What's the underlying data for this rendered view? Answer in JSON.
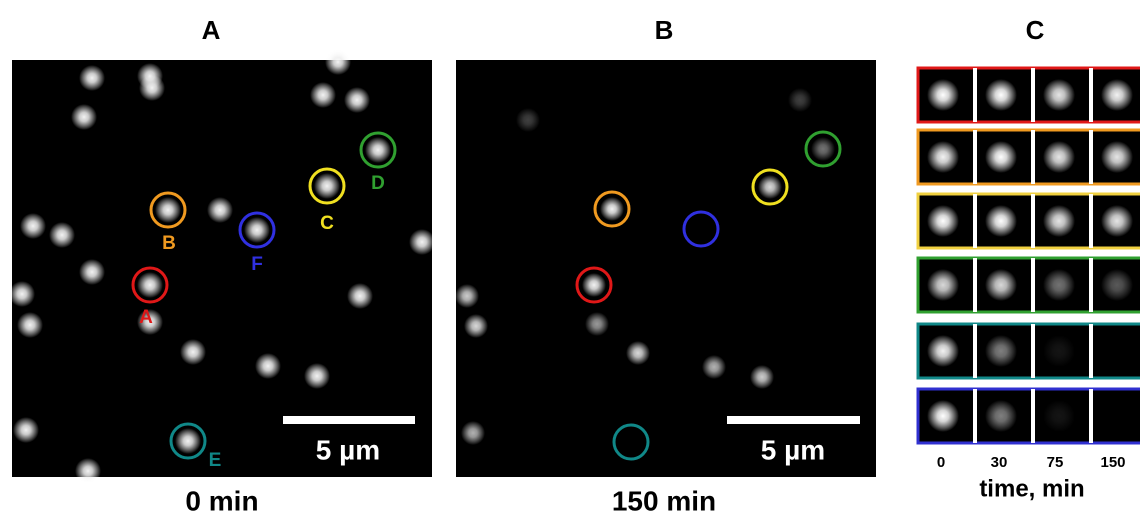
{
  "panels": [
    {
      "label": "A",
      "caption": "0 min",
      "scale_bar": "5 µm",
      "markers": [
        "A",
        "B",
        "C",
        "D",
        "E",
        "F"
      ]
    },
    {
      "label": "B",
      "caption": "150 min",
      "scale_bar": "5 µm"
    },
    {
      "label": "C",
      "time_ticks": [
        "0",
        "30",
        "75",
        "150"
      ],
      "axis_label": "time, min"
    }
  ]
}
